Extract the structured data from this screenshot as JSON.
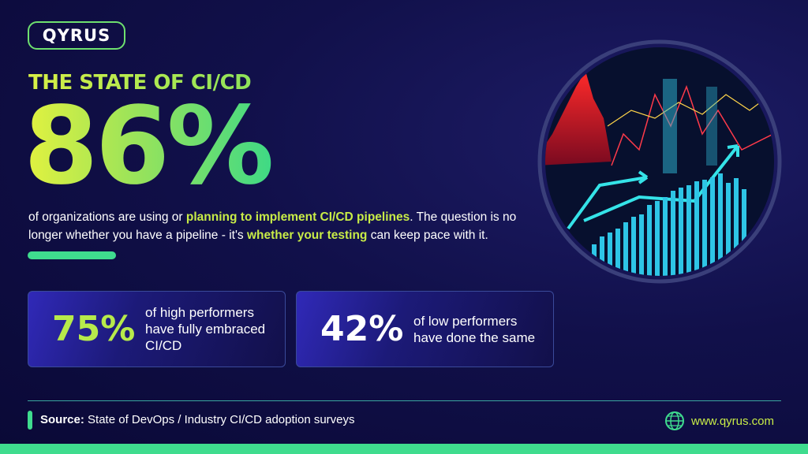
{
  "brand": {
    "logo": "QYRUS"
  },
  "header": {
    "title": "THE STATE OF CI/CD",
    "headline_stat": "86%"
  },
  "body": {
    "parts": [
      "of organizations are using or ",
      "planning to implement CI/CD pipelines",
      ". The question is no longer whether you have a pipeline - it's ",
      "whether your testing",
      " can keep pace with it."
    ]
  },
  "cards": [
    {
      "stat": "75%",
      "text": "of high performers have fully embraced CI/CD"
    },
    {
      "stat": "42%",
      "text": "of low performers have done the same"
    }
  ],
  "footer": {
    "source_label": "Source:",
    "source_text": "State of DevOps / Industry CI/CD adoption surveys",
    "website": "www.qyrus.com"
  }
}
